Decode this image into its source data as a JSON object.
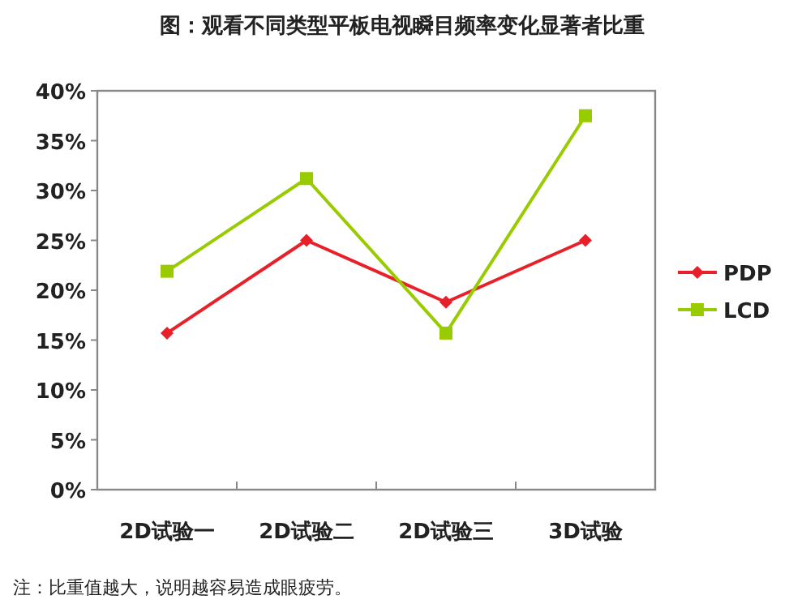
{
  "chart_data": {
    "type": "line",
    "title": "图：观看不同类型平板电视瞬目频率变化显著者比重",
    "categories": [
      "2D试验一",
      "2D试验二",
      "2D试验三",
      "3D试验"
    ],
    "series": [
      {
        "name": "PDP",
        "color": "#e8202a",
        "marker": "diamond",
        "values": [
          15.7,
          25,
          18.8,
          25
        ]
      },
      {
        "name": "LCD",
        "color": "#99cc00",
        "marker": "square",
        "values": [
          21.9,
          31.2,
          15.7,
          37.5
        ]
      }
    ],
    "ylim": [
      0,
      40
    ],
    "yticks": [
      {
        "value": 0,
        "label": "0%"
      },
      {
        "value": 5,
        "label": "5%"
      },
      {
        "value": 10,
        "label": "10%"
      },
      {
        "value": 15,
        "label": "15%"
      },
      {
        "value": 20,
        "label": "20%"
      },
      {
        "value": 25,
        "label": "25%"
      },
      {
        "value": 30,
        "label": "30%"
      },
      {
        "value": 35,
        "label": "35%"
      },
      {
        "value": 40,
        "label": "40%"
      }
    ],
    "grid": false,
    "legend": "right",
    "annotations": [
      "注：比重值越大，说明越容易造成眼疲劳。"
    ]
  }
}
